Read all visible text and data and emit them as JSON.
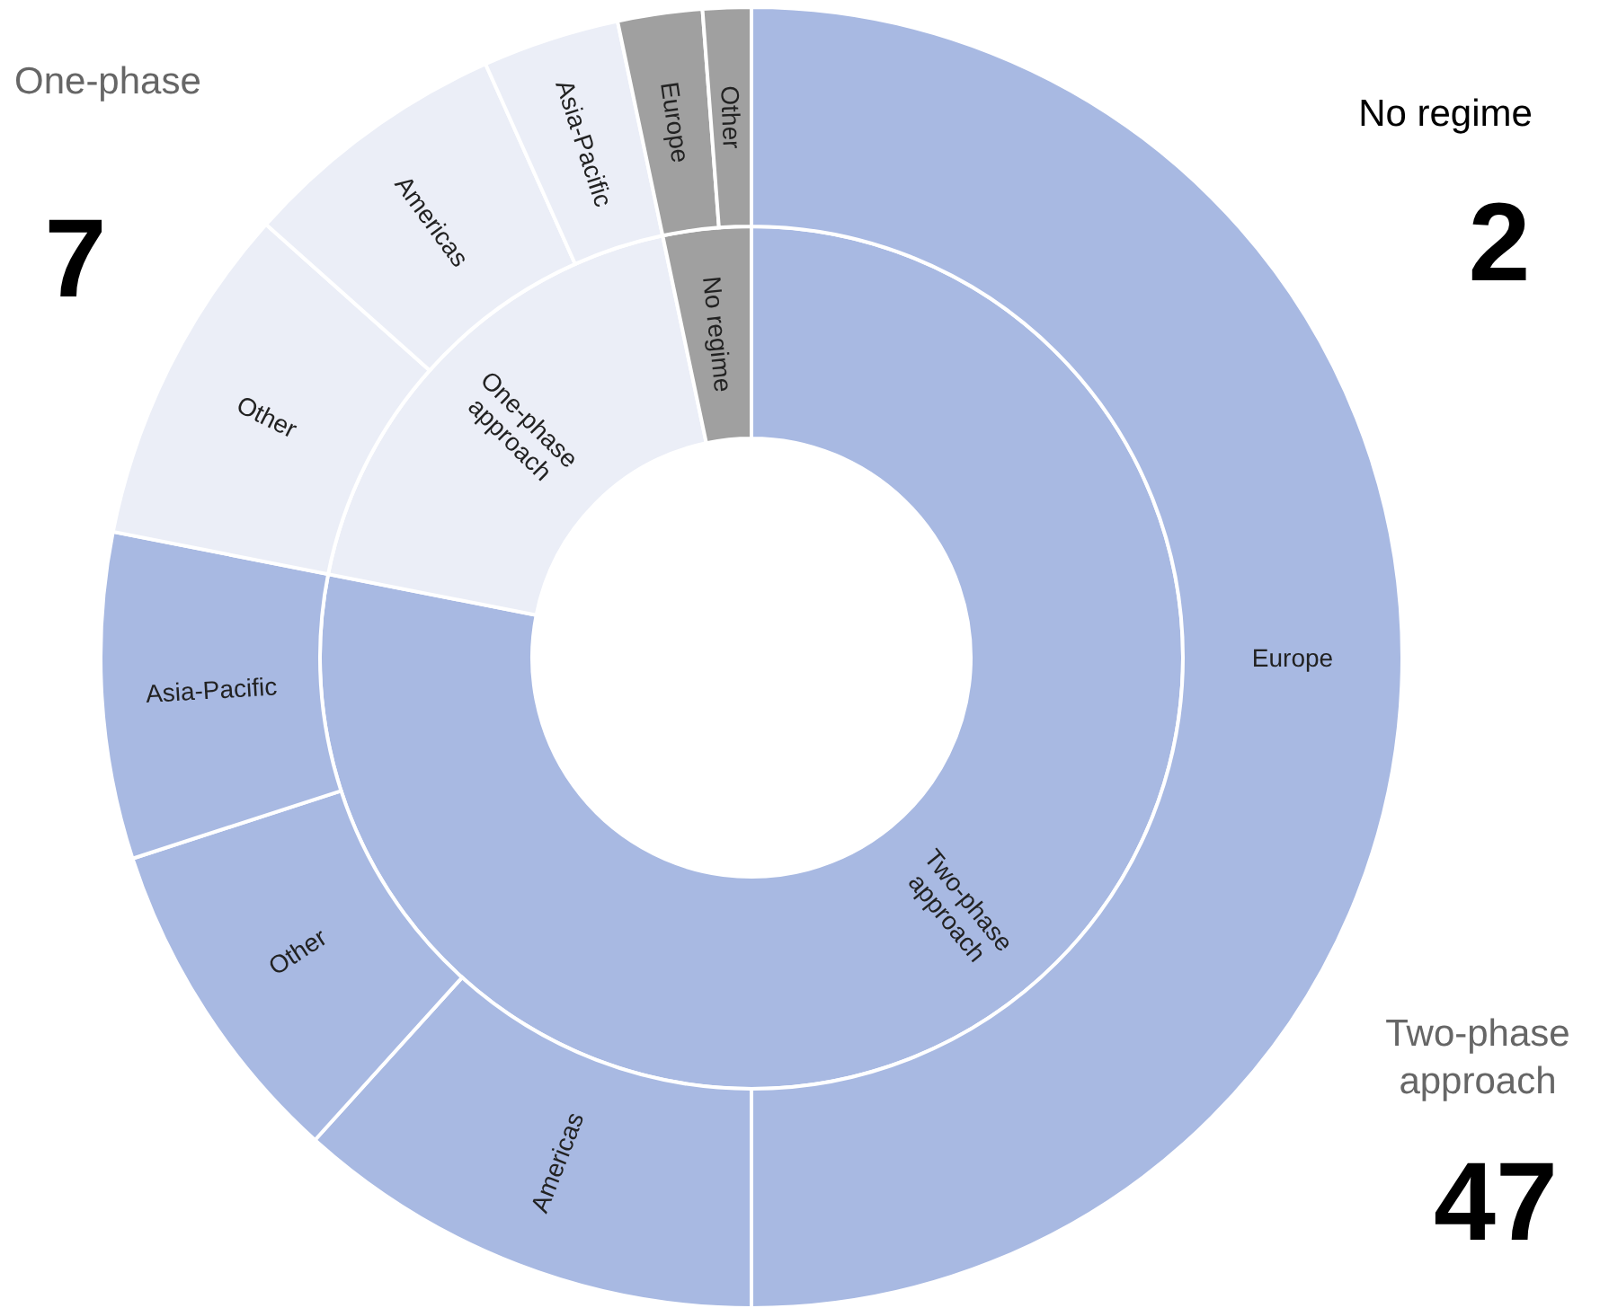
{
  "chart_data": [
    {
      "type": "donut",
      "categories": [
        "Two-phase approach",
        "One-phase approach",
        "No regime"
      ],
      "values": [
        78.1,
        18.6,
        3.3
      ],
      "colors": [
        "#a8b9e2",
        "#ebeef7",
        "#a0a0a0"
      ],
      "annotations": [
        "One-phase",
        "7",
        "No regime",
        "2",
        "Two-phase approach",
        "47"
      ]
    },
    {
      "type": "donut",
      "categories": [
        "Europe",
        "Americas",
        "Other",
        "Asia-Pacific",
        "Other",
        "Americas",
        "Asia-Pacific",
        "Europe",
        "Other"
      ],
      "values": [
        50,
        11.7,
        8.3,
        8.1,
        8.5,
        6.7,
        3.4,
        2.1,
        1.2
      ],
      "colors": [
        "#a8b9e2",
        "#a8b9e2",
        "#a8b9e2",
        "#a8b9e2",
        "#ebeef7",
        "#ebeef7",
        "#ebeef7",
        "#a0a0a0",
        "#a0a0a0"
      ]
    }
  ]
}
